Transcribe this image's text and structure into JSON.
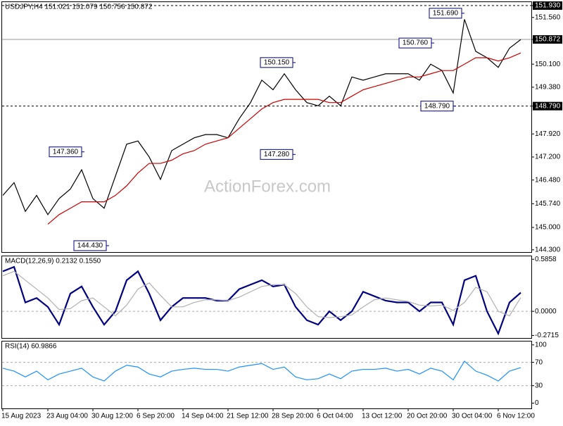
{
  "chart_data": [
    {
      "type": "line",
      "title": "USDJPY,H4 151.021 151.079 150.756 150.872",
      "watermark": "ActionForex.com",
      "ylim": [
        144.23,
        152.06
      ],
      "yticks": [
        {
          "value": 151.93,
          "label": "151.930"
        },
        {
          "value": 151.56,
          "label": "151.560"
        },
        {
          "value": 150.872,
          "label": "150.872"
        },
        {
          "value": 150.1,
          "label": "150.100"
        },
        {
          "value": 149.38,
          "label": "149.380"
        },
        {
          "value": 148.79,
          "label": "148.790"
        },
        {
          "value": 147.92,
          "label": "147.920"
        },
        {
          "value": 147.2,
          "label": "147.200"
        },
        {
          "value": 146.48,
          "label": "146.480"
        },
        {
          "value": 145.74,
          "label": "145.740"
        },
        {
          "value": 145.0,
          "label": "145.000"
        },
        {
          "value": 144.3,
          "label": "144.300"
        }
      ],
      "hlines": [
        {
          "value": 151.93,
          "style": "dashed"
        },
        {
          "value": 148.79,
          "style": "dashed"
        },
        {
          "value": 150.872,
          "style": "solid"
        }
      ],
      "series": [
        {
          "name": "USDJPY",
          "color": "#000000",
          "values": [
            146.0,
            146.4,
            145.5,
            146.0,
            145.4,
            145.9,
            146.2,
            146.8,
            145.9,
            145.6,
            146.6,
            147.6,
            147.7,
            147.2,
            146.5,
            147.4,
            147.6,
            147.8,
            147.9,
            147.9,
            147.8,
            148.4,
            148.9,
            149.6,
            149.3,
            149.8,
            149.3,
            148.9,
            148.8,
            149.1,
            148.8,
            149.7,
            149.6,
            149.7,
            149.8,
            149.8,
            149.8,
            149.6,
            150.1,
            149.9,
            149.2,
            151.5,
            150.5,
            150.3,
            150.0,
            150.6,
            150.87
          ]
        },
        {
          "name": "MA",
          "color": "#cc0000",
          "values": [
            null,
            null,
            null,
            null,
            145.1,
            145.4,
            145.6,
            145.8,
            145.8,
            145.8,
            146.0,
            146.3,
            146.7,
            147.0,
            147.0,
            147.1,
            147.3,
            147.4,
            147.6,
            147.7,
            147.8,
            148.1,
            148.4,
            148.7,
            148.9,
            149.0,
            149.0,
            149.0,
            149.0,
            148.9,
            148.9,
            149.1,
            149.3,
            149.4,
            149.5,
            149.6,
            149.7,
            149.7,
            149.8,
            149.9,
            149.9,
            150.1,
            150.3,
            150.3,
            150.2,
            150.3,
            150.45
          ]
        }
      ],
      "annotations": [
        {
          "value": 151.69,
          "label": "151.690"
        },
        {
          "value": 150.76,
          "label": "150.760"
        },
        {
          "value": 150.15,
          "label": "150.150"
        },
        {
          "value": 147.36,
          "label": "147.360"
        },
        {
          "value": 147.28,
          "label": "147.280"
        },
        {
          "value": 144.43,
          "label": "144.430"
        },
        {
          "value": 148.79,
          "label": "148.790"
        }
      ]
    },
    {
      "type": "line",
      "title": "MACD(12,26,9) 0.2132 0.1550",
      "ylim": [
        -0.3,
        0.627
      ],
      "yticks": [
        0.5858,
        {
          "value": 0,
          "label": "0.0000"
        },
        -0.2715
      ],
      "levels": [
        0
      ],
      "series": [
        {
          "name": "MACD",
          "color": "#000080",
          "values": [
            0.45,
            0.5,
            0.1,
            0.15,
            0.05,
            -0.15,
            0.2,
            0.28,
            0.05,
            -0.15,
            0.0,
            0.35,
            0.45,
            0.2,
            -0.1,
            0.05,
            0.15,
            0.15,
            0.15,
            0.12,
            0.12,
            0.25,
            0.3,
            0.35,
            0.28,
            0.3,
            0.05,
            -0.1,
            -0.15,
            0.0,
            -0.1,
            0.0,
            0.22,
            0.17,
            0.12,
            0.1,
            0.1,
            0.0,
            0.1,
            0.1,
            -0.15,
            0.35,
            0.4,
            0.0,
            -0.25,
            0.1,
            0.21
          ]
        },
        {
          "name": "Signal",
          "color": "#b0b0b0",
          "values": [
            0.4,
            0.45,
            0.35,
            0.25,
            0.15,
            0.02,
            0.03,
            0.12,
            0.15,
            0.05,
            -0.05,
            0.07,
            0.25,
            0.32,
            0.18,
            0.05,
            0.05,
            0.1,
            0.13,
            0.13,
            0.12,
            0.16,
            0.22,
            0.28,
            0.3,
            0.3,
            0.2,
            0.05,
            -0.06,
            -0.07,
            -0.06,
            -0.04,
            0.05,
            0.13,
            0.15,
            0.13,
            0.11,
            0.07,
            0.06,
            0.07,
            0.01,
            0.1,
            0.27,
            0.22,
            0.0,
            -0.05,
            0.155
          ]
        }
      ]
    },
    {
      "type": "line",
      "title": "RSI(14) 60.9866",
      "ylim": [
        -9,
        107
      ],
      "yticks": [
        100,
        70,
        30,
        0
      ],
      "levels": [
        70,
        30
      ],
      "categories": [
        "15 Aug 2023",
        null,
        null,
        null,
        "23 Aug 04:00",
        null,
        null,
        null,
        "30 Aug 12:00",
        null,
        null,
        null,
        "6 Sep 20:00",
        null,
        null,
        null,
        "14 Sep 04:00",
        null,
        null,
        null,
        "21 Sep 12:00",
        null,
        null,
        null,
        "28 Sep 20:00",
        null,
        null,
        null,
        "6 Oct 04:00",
        null,
        null,
        null,
        "13 Oct 12:00",
        null,
        null,
        null,
        "20 Oct 20:00",
        null,
        null,
        null,
        "30 Oct 04:00",
        null,
        null,
        null,
        "6 Nov 12:00",
        null,
        null
      ],
      "series": [
        {
          "name": "RSI",
          "color": "#1e90ff",
          "values": [
            60,
            55,
            45,
            55,
            40,
            50,
            55,
            60,
            45,
            38,
            55,
            65,
            62,
            50,
            45,
            55,
            58,
            60,
            58,
            58,
            55,
            62,
            65,
            68,
            58,
            62,
            45,
            40,
            42,
            50,
            42,
            55,
            58,
            58,
            60,
            55,
            58,
            50,
            60,
            55,
            40,
            72,
            55,
            48,
            38,
            55,
            61
          ]
        }
      ]
    }
  ]
}
